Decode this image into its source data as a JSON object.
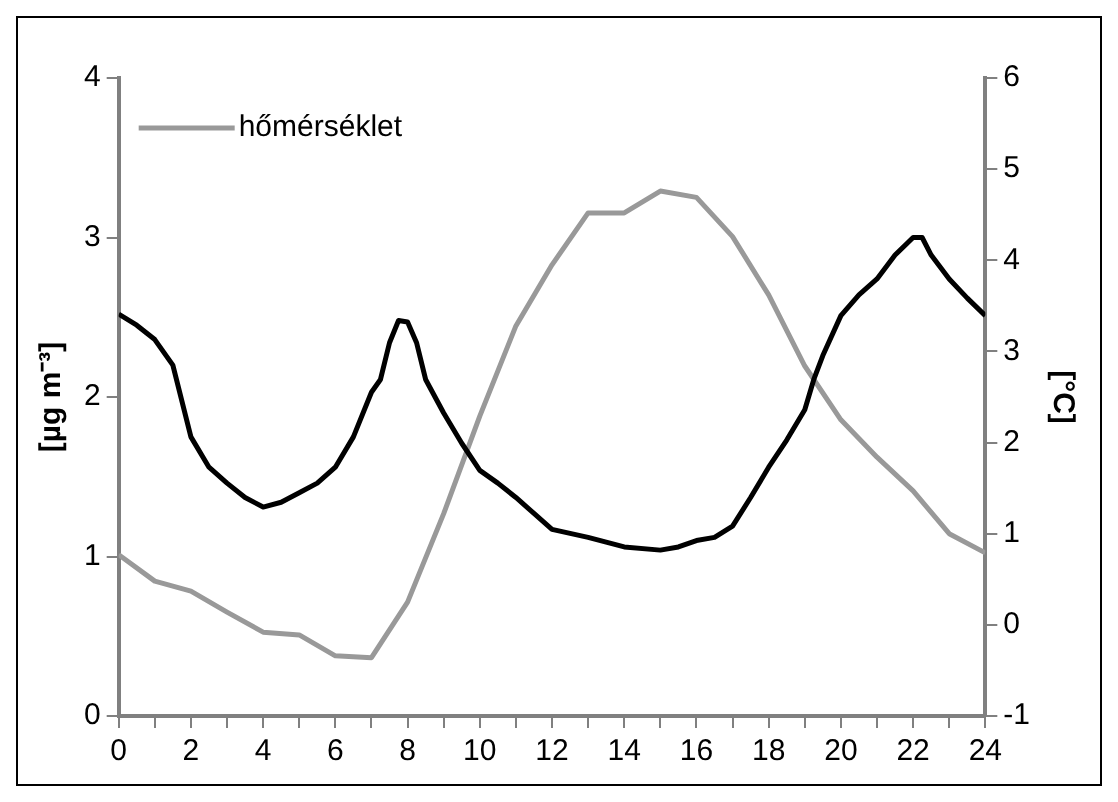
{
  "chart_data": {
    "type": "line",
    "ylabel": "[µg m⁻³]",
    "y2label": "[°C]",
    "xlim": [
      0,
      24
    ],
    "xticks": [
      0,
      {
        "value": 1,
        "label": null
      },
      2,
      {
        "value": 3,
        "label": null
      },
      4,
      {
        "value": 5,
        "label": null
      },
      6,
      {
        "value": 7,
        "label": null
      },
      8,
      {
        "value": 9,
        "label": null
      },
      10,
      {
        "value": 11,
        "label": null
      },
      12,
      {
        "value": 13,
        "label": null
      },
      14,
      {
        "value": 15,
        "label": null
      },
      16,
      {
        "value": 17,
        "label": null
      },
      18,
      {
        "value": 19,
        "label": null
      },
      20,
      {
        "value": 21,
        "label": null
      },
      22,
      {
        "value": 23,
        "label": null
      },
      24
    ],
    "ylim": [
      0,
      4
    ],
    "yticks": [
      0,
      1,
      2,
      3,
      4
    ],
    "y2lim": [
      -1,
      6
    ],
    "y2ticks": [
      -1,
      0,
      1,
      2,
      3,
      4,
      5,
      6
    ],
    "grid": false,
    "legend": "top left",
    "marker": "none",
    "line_style": "solid",
    "series": [
      {
        "color": "#000000",
        "x": [
          0,
          0.5,
          1,
          1.5,
          2,
          2.5,
          3,
          3.5,
          4,
          4.5,
          5,
          5.5,
          6,
          6.5,
          7,
          7.25,
          7.5,
          7.75,
          8,
          8.25,
          8.5,
          9,
          9.5,
          10,
          10.5,
          11,
          11.5,
          12,
          13,
          14,
          15,
          15.5,
          16,
          16.5,
          17,
          17.5,
          18,
          18.5,
          19,
          19.25,
          19.5,
          20,
          20.5,
          21,
          21.5,
          22,
          22.25,
          22.5,
          23,
          23.5,
          24
        ],
        "values": [
          2.52,
          2.45,
          2.36,
          2.2,
          1.75,
          1.56,
          1.46,
          1.37,
          1.31,
          1.34,
          1.4,
          1.46,
          1.56,
          1.75,
          2.03,
          2.11,
          2.34,
          2.48,
          2.47,
          2.34,
          2.11,
          1.9,
          1.71,
          1.54,
          1.46,
          1.37,
          1.27,
          1.17,
          1.12,
          1.06,
          1.04,
          1.06,
          1.1,
          1.12,
          1.19,
          1.37,
          1.56,
          1.73,
          1.92,
          2.11,
          2.26,
          2.51,
          2.64,
          2.74,
          2.89,
          3.0,
          3.0,
          2.89,
          2.74,
          2.62,
          2.51
        ]
      },
      {
        "name": "hőmérséklet",
        "color": "#999999",
        "axis": "y2",
        "x": [
          0,
          1,
          2,
          3,
          4,
          5,
          6,
          7,
          8,
          9,
          10,
          11,
          12,
          13,
          14,
          15,
          16,
          17,
          18,
          19,
          20,
          21,
          22,
          23,
          24
        ],
        "values": [
          0.77,
          0.48,
          0.37,
          0.14,
          -0.08,
          -0.11,
          -0.34,
          -0.36,
          0.25,
          1.22,
          2.29,
          3.28,
          3.95,
          4.52,
          4.52,
          4.76,
          4.69,
          4.26,
          3.62,
          2.84,
          2.25,
          1.84,
          1.47,
          1.0,
          0.79
        ]
      }
    ]
  }
}
